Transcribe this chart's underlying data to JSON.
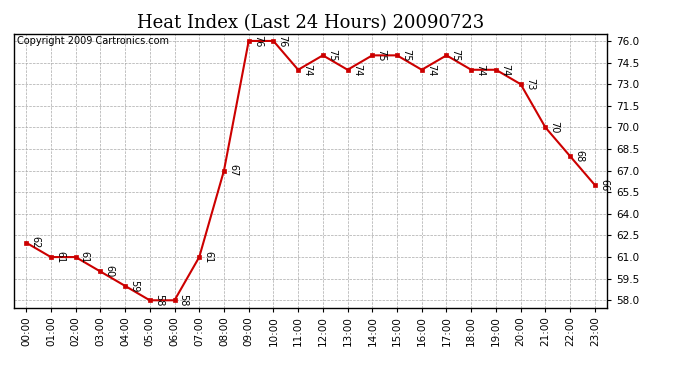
{
  "title": "Heat Index (Last 24 Hours) 20090723",
  "copyright": "Copyright 2009 Cartronics.com",
  "hours": [
    "00:00",
    "01:00",
    "02:00",
    "03:00",
    "04:00",
    "05:00",
    "06:00",
    "07:00",
    "08:00",
    "09:00",
    "10:00",
    "11:00",
    "12:00",
    "13:00",
    "14:00",
    "15:00",
    "16:00",
    "17:00",
    "18:00",
    "19:00",
    "20:00",
    "21:00",
    "22:00",
    "23:00"
  ],
  "values": [
    62,
    61,
    61,
    60,
    59,
    58,
    58,
    61,
    67,
    76,
    76,
    74,
    75,
    74,
    75,
    75,
    74,
    75,
    74,
    74,
    73,
    70,
    68,
    66
  ],
  "yticks": [
    58.0,
    59.5,
    61.0,
    62.5,
    64.0,
    65.5,
    67.0,
    68.5,
    70.0,
    71.5,
    73.0,
    74.5,
    76.0
  ],
  "ylim": [
    57.5,
    76.5
  ],
  "line_color": "#cc0000",
  "marker_color": "#cc0000",
  "bg_color": "#ffffff",
  "grid_color": "#aaaaaa",
  "title_fontsize": 13,
  "copyright_fontsize": 7,
  "label_fontsize": 7,
  "tick_fontsize": 7.5
}
